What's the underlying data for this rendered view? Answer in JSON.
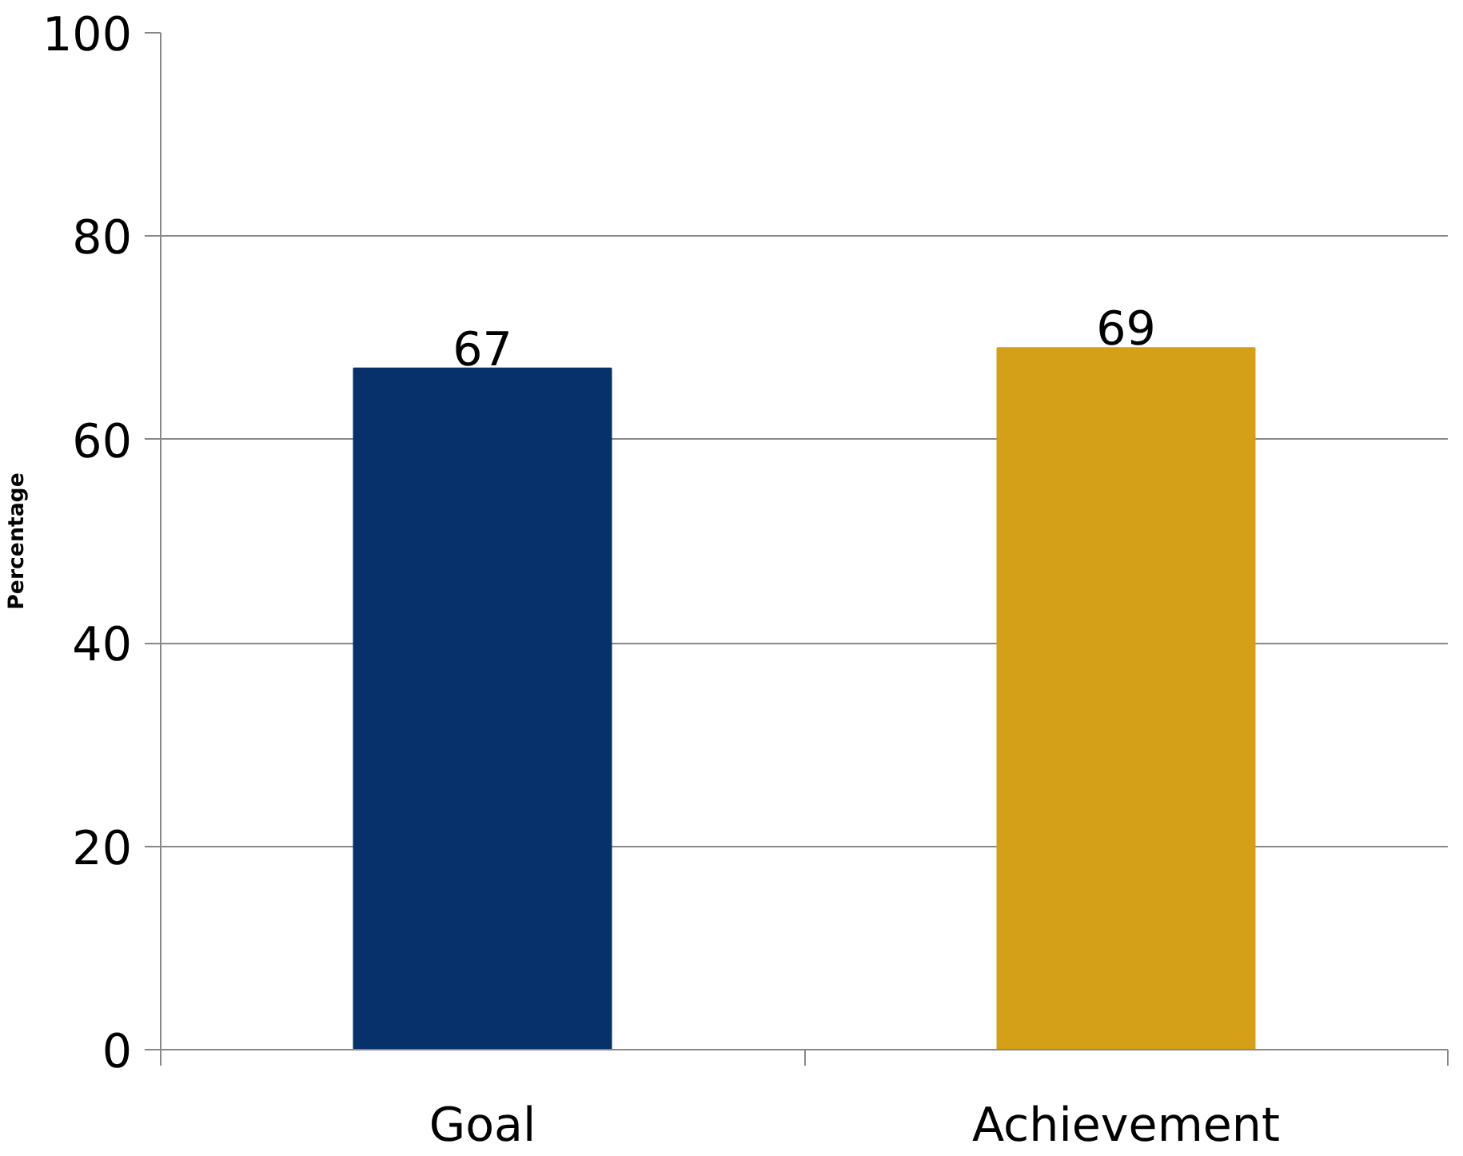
{
  "chart_data": {
    "type": "bar",
    "ylabel": "Percentage",
    "categories": [
      "Goal",
      "Achievement"
    ],
    "values": [
      67,
      69
    ],
    "colors": [
      "#06316a",
      "#d4a017"
    ],
    "ylim": [
      0,
      100
    ],
    "yticks": [
      0,
      20,
      40,
      60,
      80,
      100
    ],
    "grid": "y",
    "data_labels": true
  }
}
